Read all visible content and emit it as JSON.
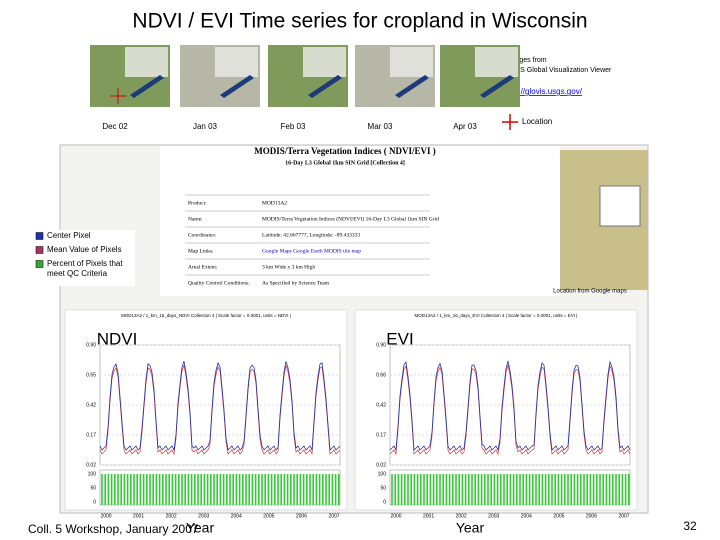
{
  "title": "NDVI / EVI Time series for cropland in Wisconsin",
  "source_note": [
    "*Images from",
    "USGS Global Visualization Viewer"
  ],
  "link": "http://glovis.usgs.gov/",
  "image_labels": [
    "Dec 02",
    "Jan 03",
    "Feb 03",
    "Mar 03",
    "Apr 03"
  ],
  "location_label": "Location",
  "web_page": {
    "heading": "MODIS/Terra Vegetation Indices ( NDVI/EVI )",
    "subheading": "16-Day L3 Global 1km SIN Grid [Collection 4]",
    "rows": [
      [
        "Product:",
        "MOD13A2"
      ],
      [
        "Name:",
        "MODIS/Terra Vegetation Indices (NDVI/EVI) 16-Day L3 Global 1km SIN Grid"
      ],
      [
        "Coordinates:",
        "Latitude: 42.667777, Longitude: -89.433333"
      ],
      [
        "Map Links:",
        "Google Maps   Google Earth   MODIS tile map"
      ],
      [
        "Areal Extent:",
        "3 km Wide x 3 km High"
      ],
      [
        "Quality Control Conditions:",
        "As Specified by Science Team"
      ]
    ]
  },
  "map_caption": "Location from Google maps",
  "legend": [
    "Center Pixel",
    "Mean Value of Pixels",
    "Percent of Pixels that meet QC Criteria"
  ],
  "charts": [
    {
      "label": "NDVI",
      "header": "MOD13A2 / 1_km_16_days_NDVI Collection 4 | Scale factor = 0.0001, units = NDVI |",
      "yticks": [
        "0.90",
        "0.65",
        "0.42",
        "0.17",
        "0.02"
      ],
      "qc_ticks": [
        "100",
        "50",
        "0"
      ],
      "years": [
        "2000",
        "2001",
        "2002",
        "2003",
        "2004",
        "2005",
        "2006",
        "2007"
      ],
      "x_label": "Year"
    },
    {
      "label": "EVI",
      "header": "MOD13A2 / 1_km_16_days_EVI Collection 4 | Scale factor = 0.0001, units = EVI |",
      "yticks": [
        "0.90",
        "0.66",
        "0.42",
        "0.17",
        "0.02"
      ],
      "qc_ticks": [
        "100",
        "50",
        "0"
      ],
      "years": [
        "2000",
        "2001",
        "2002",
        "2003",
        "2004",
        "2005",
        "2006",
        "2007"
      ],
      "x_label": "Year"
    }
  ],
  "footer": "Coll. 5 Workshop, January 2007",
  "page_number": "32"
}
